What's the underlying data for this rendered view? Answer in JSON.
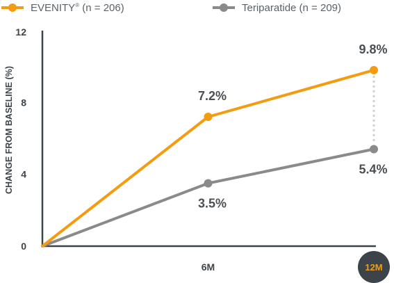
{
  "legend": {
    "series_a_name": "EVENITY",
    "series_a_sup": "®",
    "series_a_n": " (n = 206)",
    "series_b_label": "Teriparatide (n = 209)"
  },
  "colors": {
    "evenity": "#f39c12",
    "teriparatide": "#8a8a8a",
    "axis": "#3d4449",
    "highlight_badge": "#3d4449",
    "highlight_text": "#f39c12",
    "connector": "#d0d0d0"
  },
  "chart_data": {
    "type": "line",
    "ylabel": "CHANGE FROM BASELINE (%)",
    "ylim": [
      0,
      12
    ],
    "yticks": [
      "0",
      "4",
      "8",
      "12"
    ],
    "x_positions": [
      0,
      1,
      2
    ],
    "xticks": [
      {
        "value": 1,
        "label": "6M",
        "highlight": false
      },
      {
        "value": 2,
        "label": "12M",
        "highlight": true
      }
    ],
    "grid": false,
    "legend_position": "top-left",
    "series": [
      {
        "name": "EVENITY® (n = 206)",
        "color_key": "evenity",
        "values": [
          0,
          7.2,
          9.8
        ],
        "labels": [
          "",
          "7.2%",
          "9.8%"
        ],
        "label_side": "above"
      },
      {
        "name": "Teriparatide (n = 209)",
        "color_key": "teriparatide",
        "values": [
          0,
          3.5,
          5.4
        ],
        "labels": [
          "",
          "3.5%",
          "5.4%"
        ],
        "label_side": "below"
      }
    ],
    "connector_at_x": 2
  }
}
